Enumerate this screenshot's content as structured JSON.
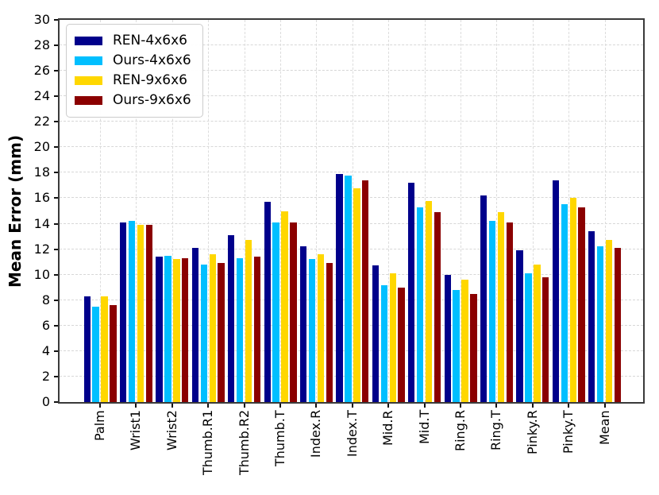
{
  "figure": {
    "background": "#ffffff"
  },
  "chart_data": {
    "type": "bar",
    "title": "",
    "xlabel": "",
    "ylabel": "Mean Error (mm)",
    "ylim": [
      0,
      30
    ],
    "yticks": [
      0,
      2,
      4,
      6,
      8,
      10,
      12,
      14,
      16,
      18,
      20,
      22,
      24,
      26,
      28,
      30
    ],
    "grid": {
      "show": true,
      "style": "dashed",
      "color": "#d7d7d7",
      "axes": "both"
    },
    "legend": {
      "position": "upper-left",
      "entries": [
        "REN-4x6x6",
        "Ours-4x6x6",
        "REN-9x6x6",
        "Ours-9x6x6"
      ]
    },
    "categories": [
      "Palm",
      "Wrist1",
      "Wrist2",
      "Thumb.R1",
      "Thumb.R2",
      "Thumb.T",
      "Index.R",
      "Index.T",
      "Mid.R",
      "Mid.T",
      "Ring.R",
      "Ring.T",
      "Pinky.R",
      "Pinky.T",
      "Mean"
    ],
    "series": [
      {
        "name": "REN-4x6x6",
        "color": "#00008B",
        "values": [
          8.3,
          14.1,
          11.4,
          12.1,
          13.1,
          15.7,
          12.2,
          17.9,
          10.7,
          17.2,
          10.0,
          16.2,
          11.9,
          17.4,
          13.4
        ]
      },
      {
        "name": "Ours-4x6x6",
        "color": "#00BFFF",
        "values": [
          7.5,
          14.2,
          11.5,
          10.8,
          11.3,
          14.1,
          11.2,
          17.8,
          9.2,
          15.3,
          8.8,
          14.2,
          10.1,
          15.5,
          12.2
        ]
      },
      {
        "name": "REN-9x6x6",
        "color": "#FFD700",
        "values": [
          8.3,
          13.9,
          11.2,
          11.6,
          12.7,
          15.0,
          11.6,
          16.8,
          10.1,
          15.8,
          9.6,
          14.9,
          10.8,
          16.0,
          12.7
        ]
      },
      {
        "name": "Ours-9x6x6",
        "color": "#8B0000",
        "values": [
          7.6,
          13.9,
          11.3,
          10.9,
          11.4,
          14.1,
          10.9,
          17.4,
          9.0,
          14.9,
          8.5,
          14.1,
          9.8,
          15.3,
          12.1
        ]
      }
    ]
  }
}
